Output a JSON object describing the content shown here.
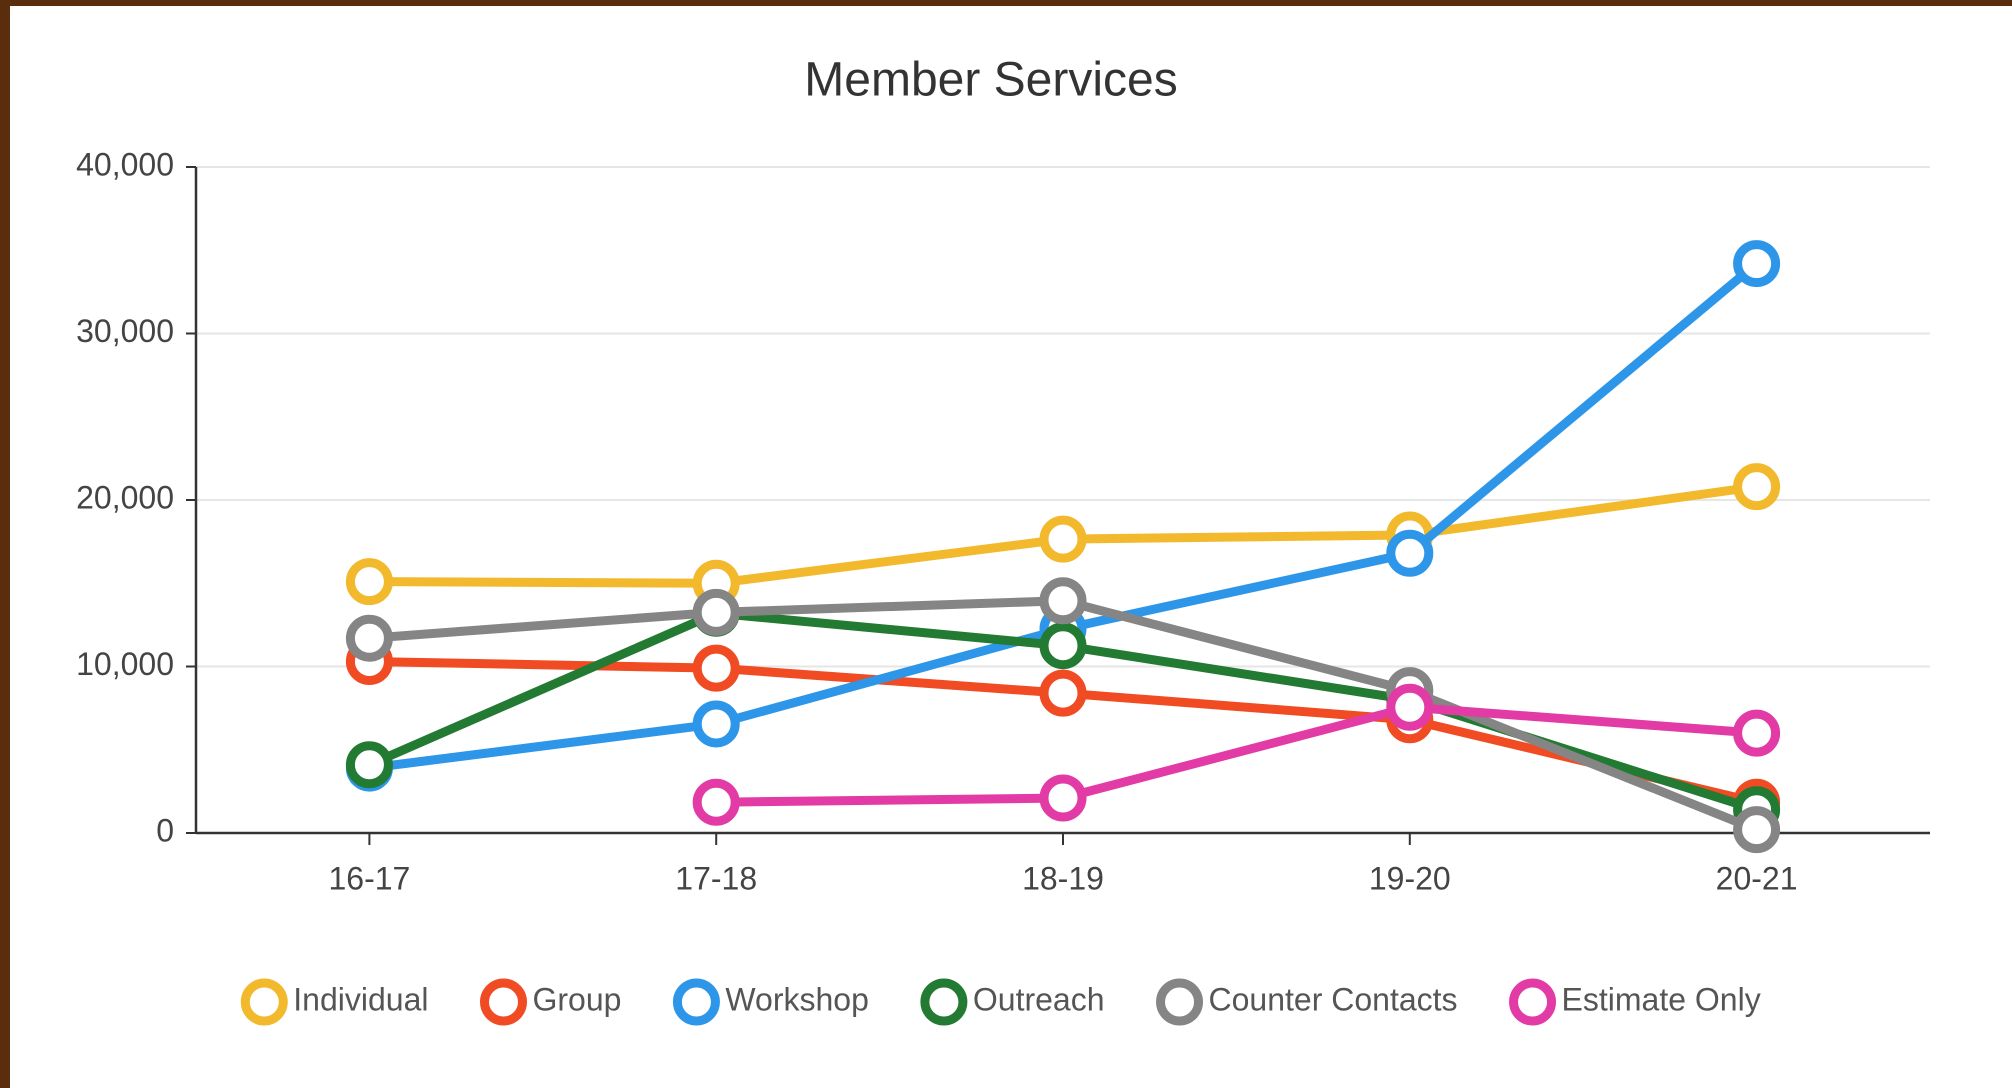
{
  "chart_data": {
    "type": "line",
    "title": "Member Services",
    "categories": [
      "16-17",
      "17-18",
      "18-19",
      "19-20",
      "20-21"
    ],
    "series": [
      {
        "name": "Individual",
        "color": "#f2b92d",
        "values": [
          15100,
          15000,
          17650,
          17900,
          20800
        ]
      },
      {
        "name": "Group",
        "color": "#f04b23",
        "values": [
          10300,
          9900,
          8400,
          6800,
          1850
        ]
      },
      {
        "name": "Workshop",
        "color": "#2e96e8",
        "values": [
          3900,
          6550,
          12250,
          16800,
          34200
        ]
      },
      {
        "name": "Outreach",
        "color": "#237a32",
        "values": [
          4100,
          13200,
          11250,
          8000,
          1400
        ]
      },
      {
        "name": "Counter Contacts",
        "color": "#858585",
        "values": [
          11700,
          13250,
          13950,
          8550,
          200
        ]
      },
      {
        "name": "Estimate Only",
        "color": "#e23ba6",
        "values": [
          null,
          1850,
          2100,
          7550,
          6000
        ]
      }
    ],
    "ylim": [
      0,
      40000
    ],
    "yticks": [
      0,
      {
        "value": 10000,
        "label": "10,000"
      },
      {
        "value": 20000,
        "label": "20,000"
      },
      {
        "value": 30000,
        "label": "30,000"
      },
      {
        "value": 40000,
        "label": "40,000"
      }
    ],
    "grid": true,
    "legend": "bottom"
  }
}
